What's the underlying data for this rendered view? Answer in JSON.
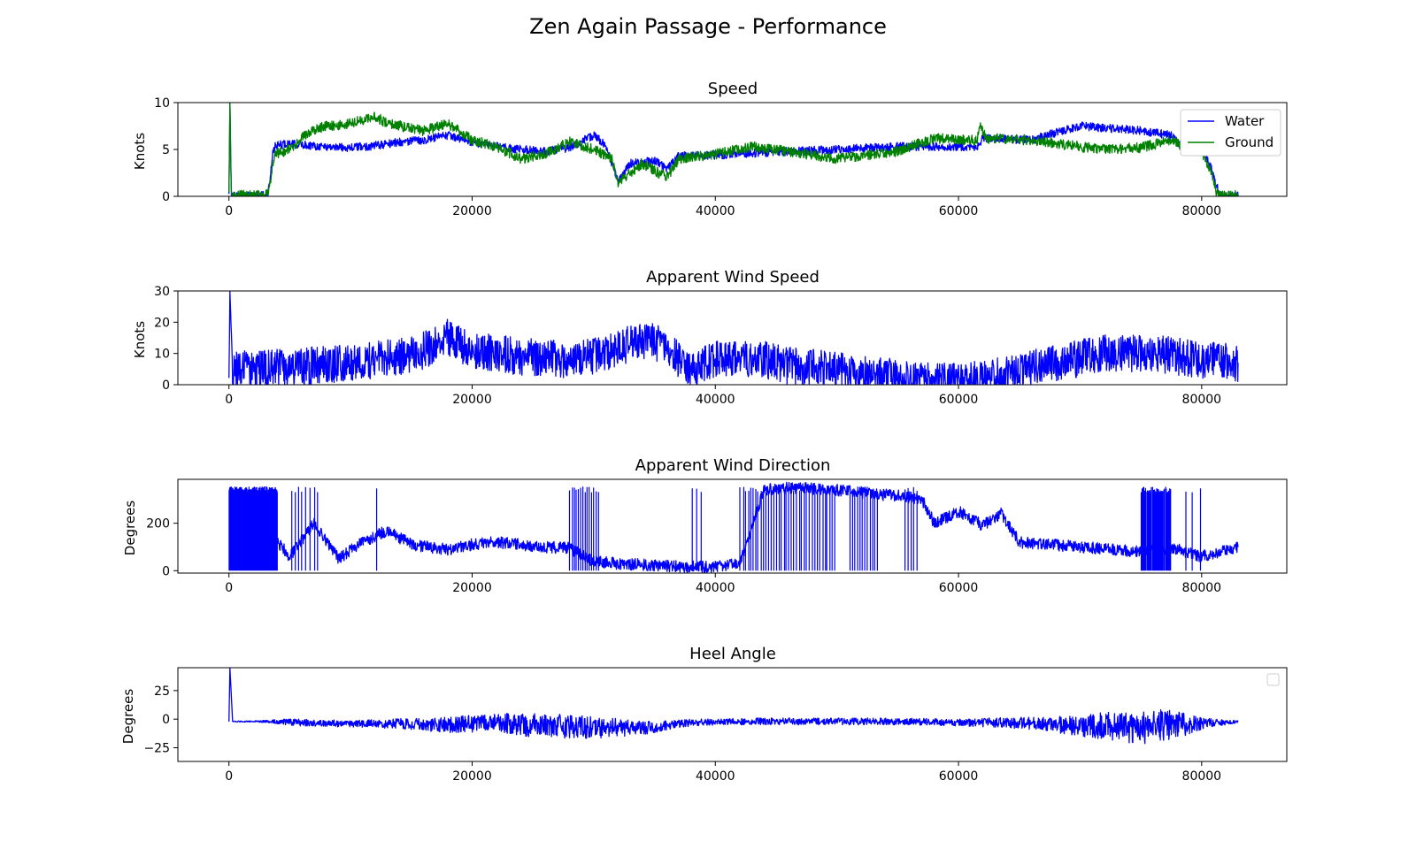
{
  "figure": {
    "title": "Zen Again Passage - Performance"
  },
  "chart_data": [
    {
      "type": "line",
      "title": "Speed",
      "xlabel": "",
      "ylabel": "Knots",
      "xlim": [
        -4200,
        87000
      ],
      "ylim": [
        0,
        10
      ],
      "xticks": [
        0,
        20000,
        40000,
        60000,
        80000
      ],
      "yticks": [
        0,
        5,
        10
      ],
      "legend_placement": "top-right",
      "series": [
        {
          "name": "Water",
          "color": "#0000ff",
          "noise": 0.45,
          "x": [
            0,
            80,
            200,
            2400,
            3200,
            3400,
            3600,
            3800,
            4500,
            6000,
            8000,
            10000,
            12000,
            14000,
            16000,
            18000,
            20000,
            22000,
            24000,
            26000,
            28000,
            30000,
            31000,
            32000,
            33000,
            35000,
            36000,
            37000,
            40000,
            43000,
            46000,
            50000,
            55000,
            60000,
            61500,
            62000,
            66000,
            68000,
            70000,
            72000,
            75000,
            77500,
            78500,
            79500,
            80200,
            80800,
            81200,
            81500,
            83000
          ],
          "y": [
            0,
            10,
            0.1,
            0.1,
            0.2,
            2.0,
            4.5,
            5.3,
            5.6,
            5.5,
            5.3,
            5.2,
            5.4,
            5.8,
            6.0,
            6.5,
            5.8,
            5.3,
            5.0,
            4.8,
            5.2,
            6.5,
            5.5,
            1.5,
            3.5,
            3.8,
            3.0,
            4.3,
            4.4,
            4.6,
            4.8,
            5.0,
            5.3,
            5.3,
            5.3,
            6.2,
            6.0,
            6.8,
            7.5,
            7.3,
            7.0,
            6.5,
            5.0,
            4.8,
            4.5,
            3.0,
            1.2,
            0.1,
            0.05
          ]
        },
        {
          "name": "Ground",
          "color": "#008000",
          "noise": 0.55,
          "x": [
            0,
            80,
            200,
            2400,
            3200,
            3400,
            3600,
            3800,
            5000,
            6500,
            8000,
            10000,
            12000,
            13000,
            16000,
            18000,
            20000,
            22000,
            24000,
            26000,
            28000,
            30000,
            31500,
            32000,
            34000,
            36000,
            37000,
            40000,
            43000,
            46000,
            50000,
            55000,
            58000,
            61500,
            61800,
            62300,
            66000,
            70000,
            72000,
            75000,
            77500,
            78500,
            80000,
            80800,
            81200,
            81500,
            83000
          ],
          "y": [
            0,
            10,
            0.1,
            0.1,
            0.2,
            1.5,
            3.5,
            4.5,
            5.0,
            6.8,
            7.5,
            7.8,
            8.5,
            7.8,
            7.0,
            7.8,
            6.0,
            5.3,
            4.0,
            4.5,
            5.8,
            5.0,
            4.0,
            1.5,
            3.5,
            2.0,
            4.0,
            4.5,
            5.3,
            4.8,
            4.0,
            4.8,
            6.2,
            6.0,
            7.5,
            6.2,
            6.0,
            5.3,
            5.0,
            5.2,
            6.0,
            5.3,
            4.8,
            2.5,
            0.5,
            0.1,
            0.05
          ]
        }
      ]
    },
    {
      "type": "line",
      "title": "Apparent Wind Speed",
      "xlabel": "",
      "ylabel": "Knots",
      "xlim": [
        -4200,
        87000
      ],
      "ylim": [
        0,
        30
      ],
      "xticks": [
        0,
        20000,
        40000,
        60000,
        80000
      ],
      "yticks": [
        0,
        10,
        20,
        30
      ],
      "series": [
        {
          "name": "",
          "color": "#0000ff",
          "noise": 6.0,
          "x": [
            0,
            80,
            300,
            3000,
            6000,
            10000,
            14000,
            16000,
            18000,
            20000,
            24000,
            28000,
            30000,
            32000,
            34000,
            36000,
            37000,
            38000,
            40000,
            44000,
            46000,
            50000,
            52000,
            55000,
            56000,
            60000,
            64000,
            68000,
            72000,
            76000,
            80000,
            83000
          ],
          "y": [
            1,
            30,
            5,
            5,
            6,
            7,
            9,
            11,
            15,
            11,
            9,
            8,
            9,
            12,
            14,
            13,
            8,
            5,
            8,
            8,
            6,
            5,
            3,
            3,
            1,
            1,
            3,
            7,
            10,
            10,
            8,
            7
          ]
        }
      ]
    },
    {
      "type": "line",
      "title": "Apparent Wind Direction",
      "xlabel": "",
      "ylabel": "Degrees",
      "xlim": [
        -4200,
        87000
      ],
      "ylim": [
        -10,
        385
      ],
      "xticks": [
        0,
        20000,
        40000,
        60000,
        80000
      ],
      "yticks": [
        0,
        200
      ],
      "series": [
        {
          "name": "",
          "color": "#0000ff",
          "noise": 25,
          "x": [
            0,
            3500,
            5000,
            7000,
            9000,
            11000,
            13000,
            15000,
            18000,
            20000,
            22000,
            26000,
            28000,
            30000,
            32000,
            36000,
            40000,
            42000,
            44000,
            46000,
            50000,
            52000,
            54000,
            56000,
            57000,
            58000,
            60000,
            62000,
            63500,
            65000,
            70000,
            75000,
            78000,
            80000,
            83000
          ],
          "y": [
            150,
            150,
            60,
            200,
            50,
            120,
            170,
            110,
            90,
            110,
            120,
            100,
            95,
            40,
            30,
            20,
            15,
            30,
            340,
            350,
            340,
            330,
            320,
            310,
            300,
            200,
            250,
            190,
            240,
            120,
            100,
            80,
            90,
            60,
            100
          ]
        }
      ],
      "spikes": [
        {
          "from": 0,
          "to": 4000,
          "count": 130
        },
        {
          "from": 5000,
          "to": 7500,
          "count": 8
        },
        {
          "from": 12000,
          "to": 12300,
          "count": 1
        },
        {
          "from": 28000,
          "to": 30500,
          "count": 14
        },
        {
          "from": 38000,
          "to": 39000,
          "count": 3
        },
        {
          "from": 42000,
          "to": 50000,
          "count": 38
        },
        {
          "from": 51000,
          "to": 53500,
          "count": 12
        },
        {
          "from": 55500,
          "to": 56800,
          "count": 5
        },
        {
          "from": 75000,
          "to": 77500,
          "count": 35
        },
        {
          "from": 78500,
          "to": 80500,
          "count": 3
        }
      ]
    },
    {
      "type": "line",
      "title": "Heel Angle",
      "xlabel": "",
      "ylabel": "Degrees",
      "xlim": [
        -4200,
        87000
      ],
      "ylim": [
        -37,
        45
      ],
      "xticks": [
        0,
        20000,
        40000,
        60000,
        80000
      ],
      "yticks": [
        -25,
        0,
        25
      ],
      "legend_placement": "top-right",
      "series": [
        {
          "name": "",
          "color": "#0000ff",
          "noise": 1.0,
          "x": [
            0,
            80,
            300,
            3000,
            6000,
            10000,
            14000,
            18000,
            22000,
            26000,
            30000,
            34000,
            36000,
            38000,
            42000,
            46000,
            50000,
            56000,
            60000,
            64000,
            68000,
            72000,
            74000,
            76000,
            78000,
            80000,
            83000
          ],
          "y": [
            -2,
            45,
            -2,
            -2,
            -3,
            -4,
            -4,
            -5,
            -3,
            -6,
            -7,
            -8,
            -5,
            -3,
            -2,
            -2,
            -2,
            -2,
            -3,
            -3,
            -5,
            -6,
            -8,
            -6,
            -5,
            -4,
            -2
          ],
          "amp_x": [
            0,
            3000,
            5000,
            10000,
            13000,
            18000,
            22000,
            25000,
            30000,
            34000,
            38000,
            44000,
            56000,
            60000,
            65000,
            69000,
            72000,
            74000,
            76000,
            78000,
            80000,
            83000
          ],
          "amp": [
            0.3,
            1,
            3,
            3,
            4,
            7,
            8,
            11,
            10,
            6,
            3,
            3,
            3,
            3,
            5,
            8,
            12,
            14,
            15,
            12,
            5,
            1
          ]
        }
      ]
    }
  ]
}
